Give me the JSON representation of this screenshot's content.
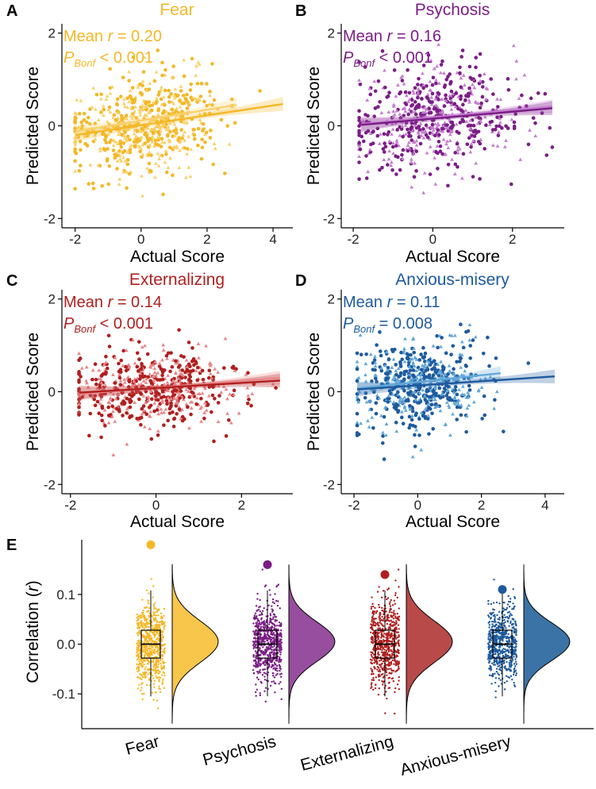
{
  "figure": {
    "axis_color": "#000000",
    "panels": [
      {
        "letter": "A",
        "title": "Fear",
        "color": "#f4b827",
        "light_color": "#f9d16c",
        "annotation": {
          "mean_prefix": "Mean ",
          "r_symbol": "r",
          "mean_value": " = 0.20",
          "p_symbol": "P",
          "p_subscript": "Bonf",
          "p_value": " < 0.001"
        },
        "xlabel": "Actual Score",
        "ylabel": "Predicted Score",
        "xlim": [
          -2.4,
          4.6
        ],
        "ylim": [
          -2.2,
          2.2
        ],
        "xticks": [
          "-2",
          "0",
          "2",
          "4"
        ],
        "xtick_values": [
          -2,
          0,
          2,
          4
        ],
        "yticks": [
          "-2",
          "0",
          "2"
        ],
        "ytick_values": [
          -2,
          0,
          2
        ],
        "dark_fit": {
          "x": [
            -2.0,
            4.3
          ],
          "y": [
            -0.2,
            0.47
          ]
        },
        "light_fit": {
          "x": [
            -2.0,
            2.9
          ],
          "y": [
            -0.12,
            0.45
          ]
        },
        "x_range": [
          -2.0,
          4.3
        ],
        "x_mean": 0.1,
        "x_sd": 1.05,
        "y_sd": 0.5,
        "seed": 11
      },
      {
        "letter": "B",
        "title": "Psychosis",
        "color": "#7b1d86",
        "light_color": "#c57fd0",
        "annotation": {
          "mean_prefix": "Mean ",
          "r_symbol": "r",
          "mean_value": " = 0.16",
          "p_symbol": "P",
          "p_subscript": "Bonf",
          "p_value": " < 0.001"
        },
        "xlabel": "Actual Score",
        "ylabel": "Predicted Score",
        "xlim": [
          -2.3,
          3.3
        ],
        "ylim": [
          -2.2,
          2.2
        ],
        "xticks": [
          "-2",
          "0",
          "2"
        ],
        "xtick_values": [
          -2,
          0,
          2
        ],
        "yticks": [
          "-2",
          "0",
          "2"
        ],
        "ytick_values": [
          -2,
          0,
          2
        ],
        "dark_fit": {
          "x": [
            -1.8,
            3.0
          ],
          "y": [
            0.02,
            0.38
          ]
        },
        "light_fit": {
          "x": [
            -1.8,
            3.0
          ],
          "y": [
            0.04,
            0.42
          ]
        },
        "x_range": [
          -1.85,
          3.0
        ],
        "x_mean": 0.0,
        "x_sd": 1.0,
        "y_sd": 0.52,
        "seed": 23
      },
      {
        "letter": "C",
        "title": "Externalizing",
        "color": "#b01f1f",
        "light_color": "#e8878a",
        "annotation": {
          "mean_prefix": "Mean ",
          "r_symbol": "r",
          "mean_value": " = 0.14",
          "p_symbol": "P",
          "p_subscript": "Bonf",
          "p_value": " < 0.001"
        },
        "xlabel": "Actual Score",
        "ylabel": "Predicted Score",
        "xlim": [
          -2.2,
          3.2
        ],
        "ylim": [
          -2.2,
          2.2
        ],
        "xticks": [
          "-2",
          "0",
          "2"
        ],
        "xtick_values": [
          -2,
          0,
          2
        ],
        "yticks": [
          "-2",
          "0",
          "2"
        ],
        "ytick_values": [
          -2,
          0,
          2
        ],
        "dark_fit": {
          "x": [
            -1.8,
            2.9
          ],
          "y": [
            -0.02,
            0.24
          ]
        },
        "light_fit": {
          "x": [
            -1.8,
            2.9
          ],
          "y": [
            -0.05,
            0.3
          ]
        },
        "x_range": [
          -1.8,
          2.9
        ],
        "x_mean": 0.0,
        "x_sd": 1.0,
        "y_sd": 0.42,
        "seed": 37
      },
      {
        "letter": "D",
        "title": "Anxious-misery",
        "color": "#1e5a9e",
        "light_color": "#62a8d8",
        "annotation": {
          "mean_prefix": "Mean ",
          "r_symbol": "r",
          "mean_value": " = 0.11",
          "p_symbol": "P",
          "p_subscript": "Bonf",
          "p_value": " = 0.008"
        },
        "xlabel": "Actual Score",
        "ylabel": "Predicted Score",
        "xlim": [
          -2.4,
          4.6
        ],
        "ylim": [
          -2.2,
          2.2
        ],
        "xticks": [
          "-2",
          "0",
          "2",
          "4"
        ],
        "xtick_values": [
          -2,
          0,
          2,
          4
        ],
        "yticks": [
          "-2",
          "0",
          "2"
        ],
        "ytick_values": [
          -2,
          0,
          2
        ],
        "dark_fit": {
          "x": [
            -1.9,
            4.3
          ],
          "y": [
            0.05,
            0.33
          ]
        },
        "light_fit": {
          "x": [
            -1.9,
            2.6
          ],
          "y": [
            0.07,
            0.4
          ]
        },
        "x_range": [
          -1.9,
          4.3
        ],
        "x_mean": 0.0,
        "x_sd": 1.0,
        "y_sd": 0.45,
        "seed": 53
      }
    ]
  },
  "chart_data": [
    {
      "type": "scatter",
      "panel": "A",
      "title": "Fear",
      "xlabel": "Actual Score",
      "ylabel": "Predicted Score",
      "xlim": [
        -2.4,
        4.6
      ],
      "ylim": [
        -2.2,
        2.2
      ],
      "series": [
        {
          "name": "points",
          "description": "~700 individual predictions"
        }
      ],
      "fit_line": {
        "intercept": 0.05,
        "slope": 0.1
      },
      "annotation": "Mean r = 0.20, P_Bonf < 0.001"
    },
    {
      "type": "scatter",
      "panel": "B",
      "title": "Psychosis",
      "xlabel": "Actual Score",
      "ylabel": "Predicted Score",
      "xlim": [
        -2.3,
        3.3
      ],
      "ylim": [
        -2.2,
        2.2
      ],
      "fit_line": {
        "intercept": 0.15,
        "slope": 0.075
      },
      "annotation": "Mean r = 0.16, P_Bonf < 0.001"
    },
    {
      "type": "scatter",
      "panel": "C",
      "title": "Externalizing",
      "xlabel": "Actual Score",
      "ylabel": "Predicted Score",
      "xlim": [
        -2.2,
        3.2
      ],
      "ylim": [
        -2.2,
        2.2
      ],
      "fit_line": {
        "intercept": 0.08,
        "slope": 0.055
      },
      "annotation": "Mean r = 0.14, P_Bonf < 0.001"
    },
    {
      "type": "scatter",
      "panel": "D",
      "title": "Anxious-misery",
      "xlabel": "Actual Score",
      "ylabel": "Predicted Score",
      "xlim": [
        -2.4,
        4.6
      ],
      "ylim": [
        -2.2,
        2.2
      ],
      "fit_line": {
        "intercept": 0.14,
        "slope": 0.045
      },
      "annotation": "Mean r = 0.11, P_Bonf = 0.008"
    },
    {
      "type": "raincloud",
      "panel": "E",
      "ylabel": "Correlation (r)",
      "ylim": [
        -0.17,
        0.21
      ],
      "yticks": [
        "0.1",
        "0.0",
        "-0.1"
      ],
      "ytick_values": [
        0.1,
        0.0,
        -0.1
      ],
      "categories": [
        "Fear",
        "Psychosis",
        "Externalizing",
        "Anxious-misery"
      ],
      "colors": [
        "#f4b827",
        "#7b1d86",
        "#b01f1f",
        "#1e5a9e"
      ],
      "fill_colors": [
        "#f7c64a",
        "#974e9e",
        "#b94a4a",
        "#3b73a7"
      ],
      "observed_r": [
        0.2,
        0.16,
        0.14,
        0.11
      ],
      "null_distribution": {
        "median": [
          0.0,
          0.0,
          0.0,
          0.0
        ],
        "q1": [
          -0.028,
          -0.028,
          -0.028,
          -0.028
        ],
        "q3": [
          0.028,
          0.028,
          0.028,
          0.028
        ],
        "whisker_low": [
          -0.105,
          -0.105,
          -0.105,
          -0.105
        ],
        "whisker_high": [
          0.108,
          0.108,
          0.108,
          0.108
        ],
        "sd": [
          0.042,
          0.04,
          0.042,
          0.038
        ]
      }
    }
  ]
}
